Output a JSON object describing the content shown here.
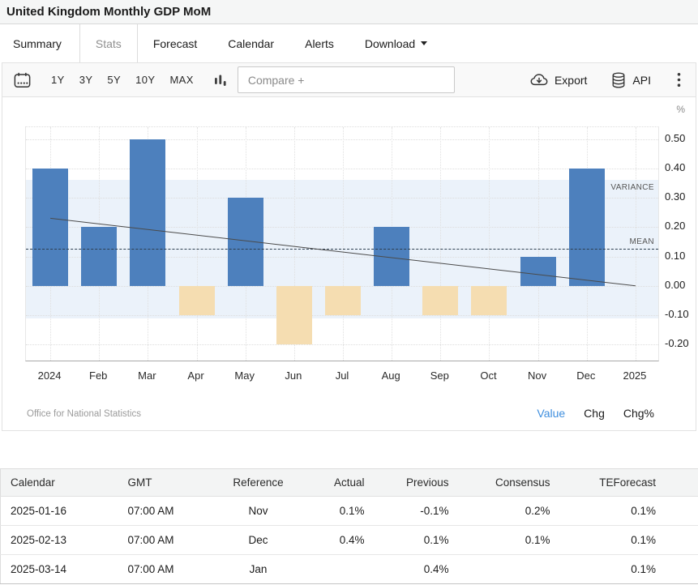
{
  "header": {
    "title": "United Kingdom Monthly GDP MoM",
    "tabs": [
      {
        "label": "Summary",
        "active": false
      },
      {
        "label": "Stats",
        "active": true
      },
      {
        "label": "Forecast",
        "active": false
      },
      {
        "label": "Calendar",
        "active": false
      },
      {
        "label": "Alerts",
        "active": false
      },
      {
        "label": "Download",
        "active": false,
        "has_caret": true
      }
    ]
  },
  "toolbar": {
    "ranges": [
      "1Y",
      "3Y",
      "5Y",
      "10Y",
      "MAX"
    ],
    "compare_placeholder": "Compare +",
    "export_label": "Export",
    "api_label": "API",
    "icons": {
      "date_picker": "calendar-icon",
      "chart_type": "bar-chart-icon",
      "export": "cloud-download-icon",
      "api": "database-icon",
      "more": "kebab-menu-icon"
    }
  },
  "chart_data": {
    "type": "bar",
    "title": "United Kingdom Monthly GDP MoM",
    "unit": "%",
    "categories": [
      "2024",
      "Feb",
      "Mar",
      "Apr",
      "May",
      "Jun",
      "Jul",
      "Aug",
      "Sep",
      "Oct",
      "Nov",
      "Dec",
      "2025"
    ],
    "values": [
      0.4,
      0.2,
      0.5,
      -0.1,
      0.3,
      -0.2,
      -0.1,
      0.2,
      -0.1,
      -0.1,
      0.1,
      0.4
    ],
    "ylim": [
      -0.26,
      0.54
    ],
    "yticks": [
      {
        "v": 0.5,
        "label": "0.50"
      },
      {
        "v": 0.4,
        "label": "0.40"
      },
      {
        "v": 0.3,
        "label": "0.30"
      },
      {
        "v": 0.2,
        "label": "0.20"
      },
      {
        "v": 0.1,
        "label": "0.10"
      },
      {
        "v": 0.0,
        "label": "0.00"
      },
      {
        "v": -0.1,
        "label": "-0.10"
      },
      {
        "v": -0.2,
        "label": "-0.20"
      }
    ],
    "mean": 0.125,
    "variance_band": [
      -0.11,
      0.36
    ],
    "trend": [
      0.23,
      0.0
    ],
    "annotations": {
      "variance": "VARIANCE",
      "mean": "MEAN"
    },
    "source": "Office for National Statistics",
    "grid": true,
    "legend_position": "none",
    "colors": {
      "bar_positive": "#4D80BD",
      "bar_negative": "#F5DDB1",
      "variance_band": "#EBF2FA",
      "mean_line": "#2E3F50",
      "trend_line": "#4A4A4A",
      "active_link": "#3E8EDE"
    }
  },
  "view_toggle": {
    "options": [
      {
        "label": "Value",
        "active": true
      },
      {
        "label": "Chg",
        "active": false
      },
      {
        "label": "Chg%",
        "active": false
      }
    ]
  },
  "table": {
    "headers": [
      "Calendar",
      "GMT",
      "Reference",
      "Actual",
      "Previous",
      "Consensus",
      "TEForecast"
    ],
    "rows": [
      [
        "2025-01-16",
        "07:00 AM",
        "Nov",
        "0.1%",
        "-0.1%",
        "0.2%",
        "0.1%"
      ],
      [
        "2025-02-13",
        "07:00 AM",
        "Dec",
        "0.4%",
        "0.1%",
        "0.1%",
        "0.1%"
      ],
      [
        "2025-03-14",
        "07:00 AM",
        "Jan",
        "",
        "0.4%",
        "",
        "0.1%"
      ]
    ]
  }
}
